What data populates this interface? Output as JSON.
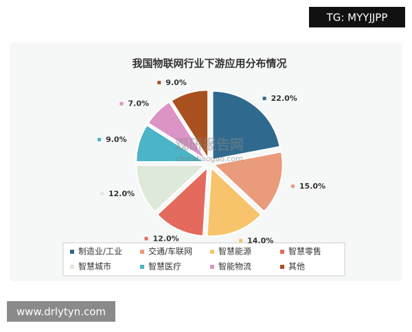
{
  "chart_data": {
    "type": "pie",
    "title": "我国物联网行业下游应用分布情况",
    "categories": [
      "制造业/工业",
      "交通/车联网",
      "智慧能源",
      "智慧零售",
      "智慧城市",
      "智慧医疗",
      "智能物流",
      "其他"
    ],
    "values": [
      22,
      15,
      14,
      12,
      12,
      9,
      7,
      9
    ],
    "value_labels": [
      "22.0%",
      "15.0%",
      "14.0%",
      "12.0%",
      "12.0%",
      "9.0%",
      "7.0%",
      "9.0%"
    ],
    "colors": [
      "#2f6a8e",
      "#e99b7c",
      "#f7c46c",
      "#e46a5e",
      "#dfe9da",
      "#4bb4c6",
      "#dc93c6",
      "#a9501f"
    ],
    "legend": "bottom"
  },
  "overlay_texts": {
    "top_right": "TG: MYYJJPP",
    "bottom_left": "www.drlytyn.com",
    "watermark": [
      "观研报告网",
      "chinabaogao.com"
    ]
  }
}
